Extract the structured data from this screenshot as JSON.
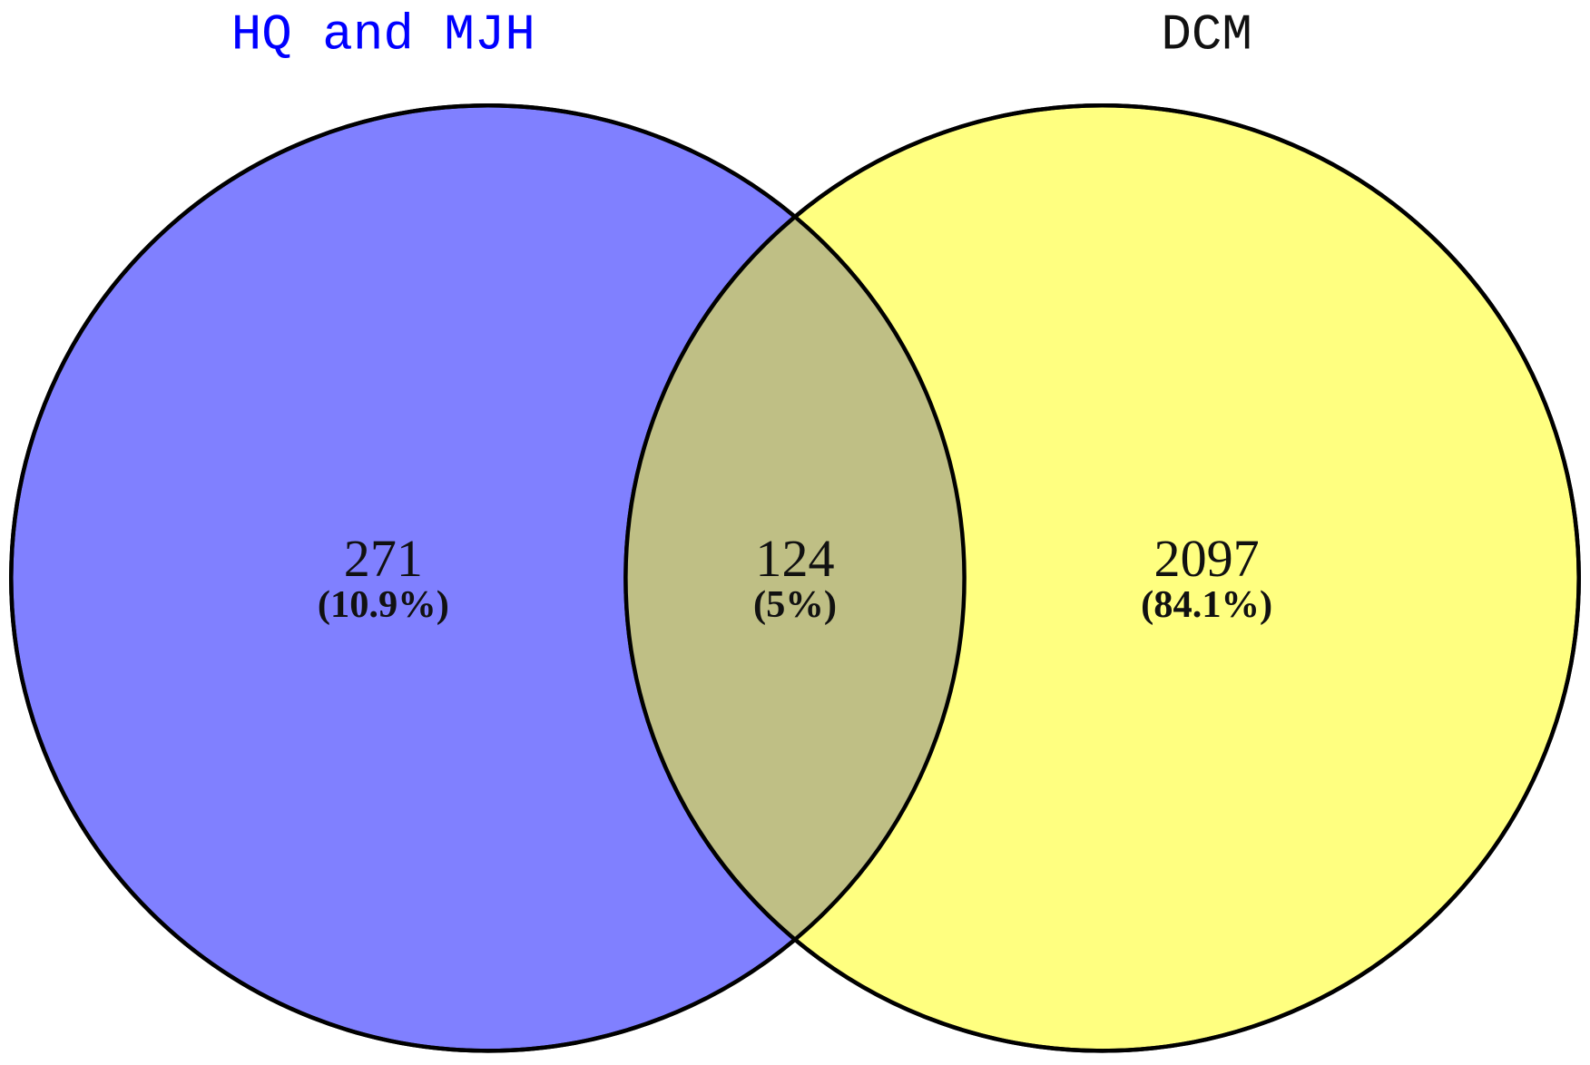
{
  "sets": [
    {
      "name": "HQ and MJH",
      "color": "#8080ff",
      "title_color": "#0000ff"
    },
    {
      "name": "DCM",
      "color": "#ffff80",
      "title_color": "#111111"
    }
  ],
  "intersection_color": "#bfbf85",
  "regions": {
    "left_only": {
      "count": "271",
      "percent": "(10.9%)"
    },
    "both": {
      "count": "124",
      "percent": "(5%)"
    },
    "right_only": {
      "count": "2097",
      "percent": "(84.1%)"
    }
  }
}
